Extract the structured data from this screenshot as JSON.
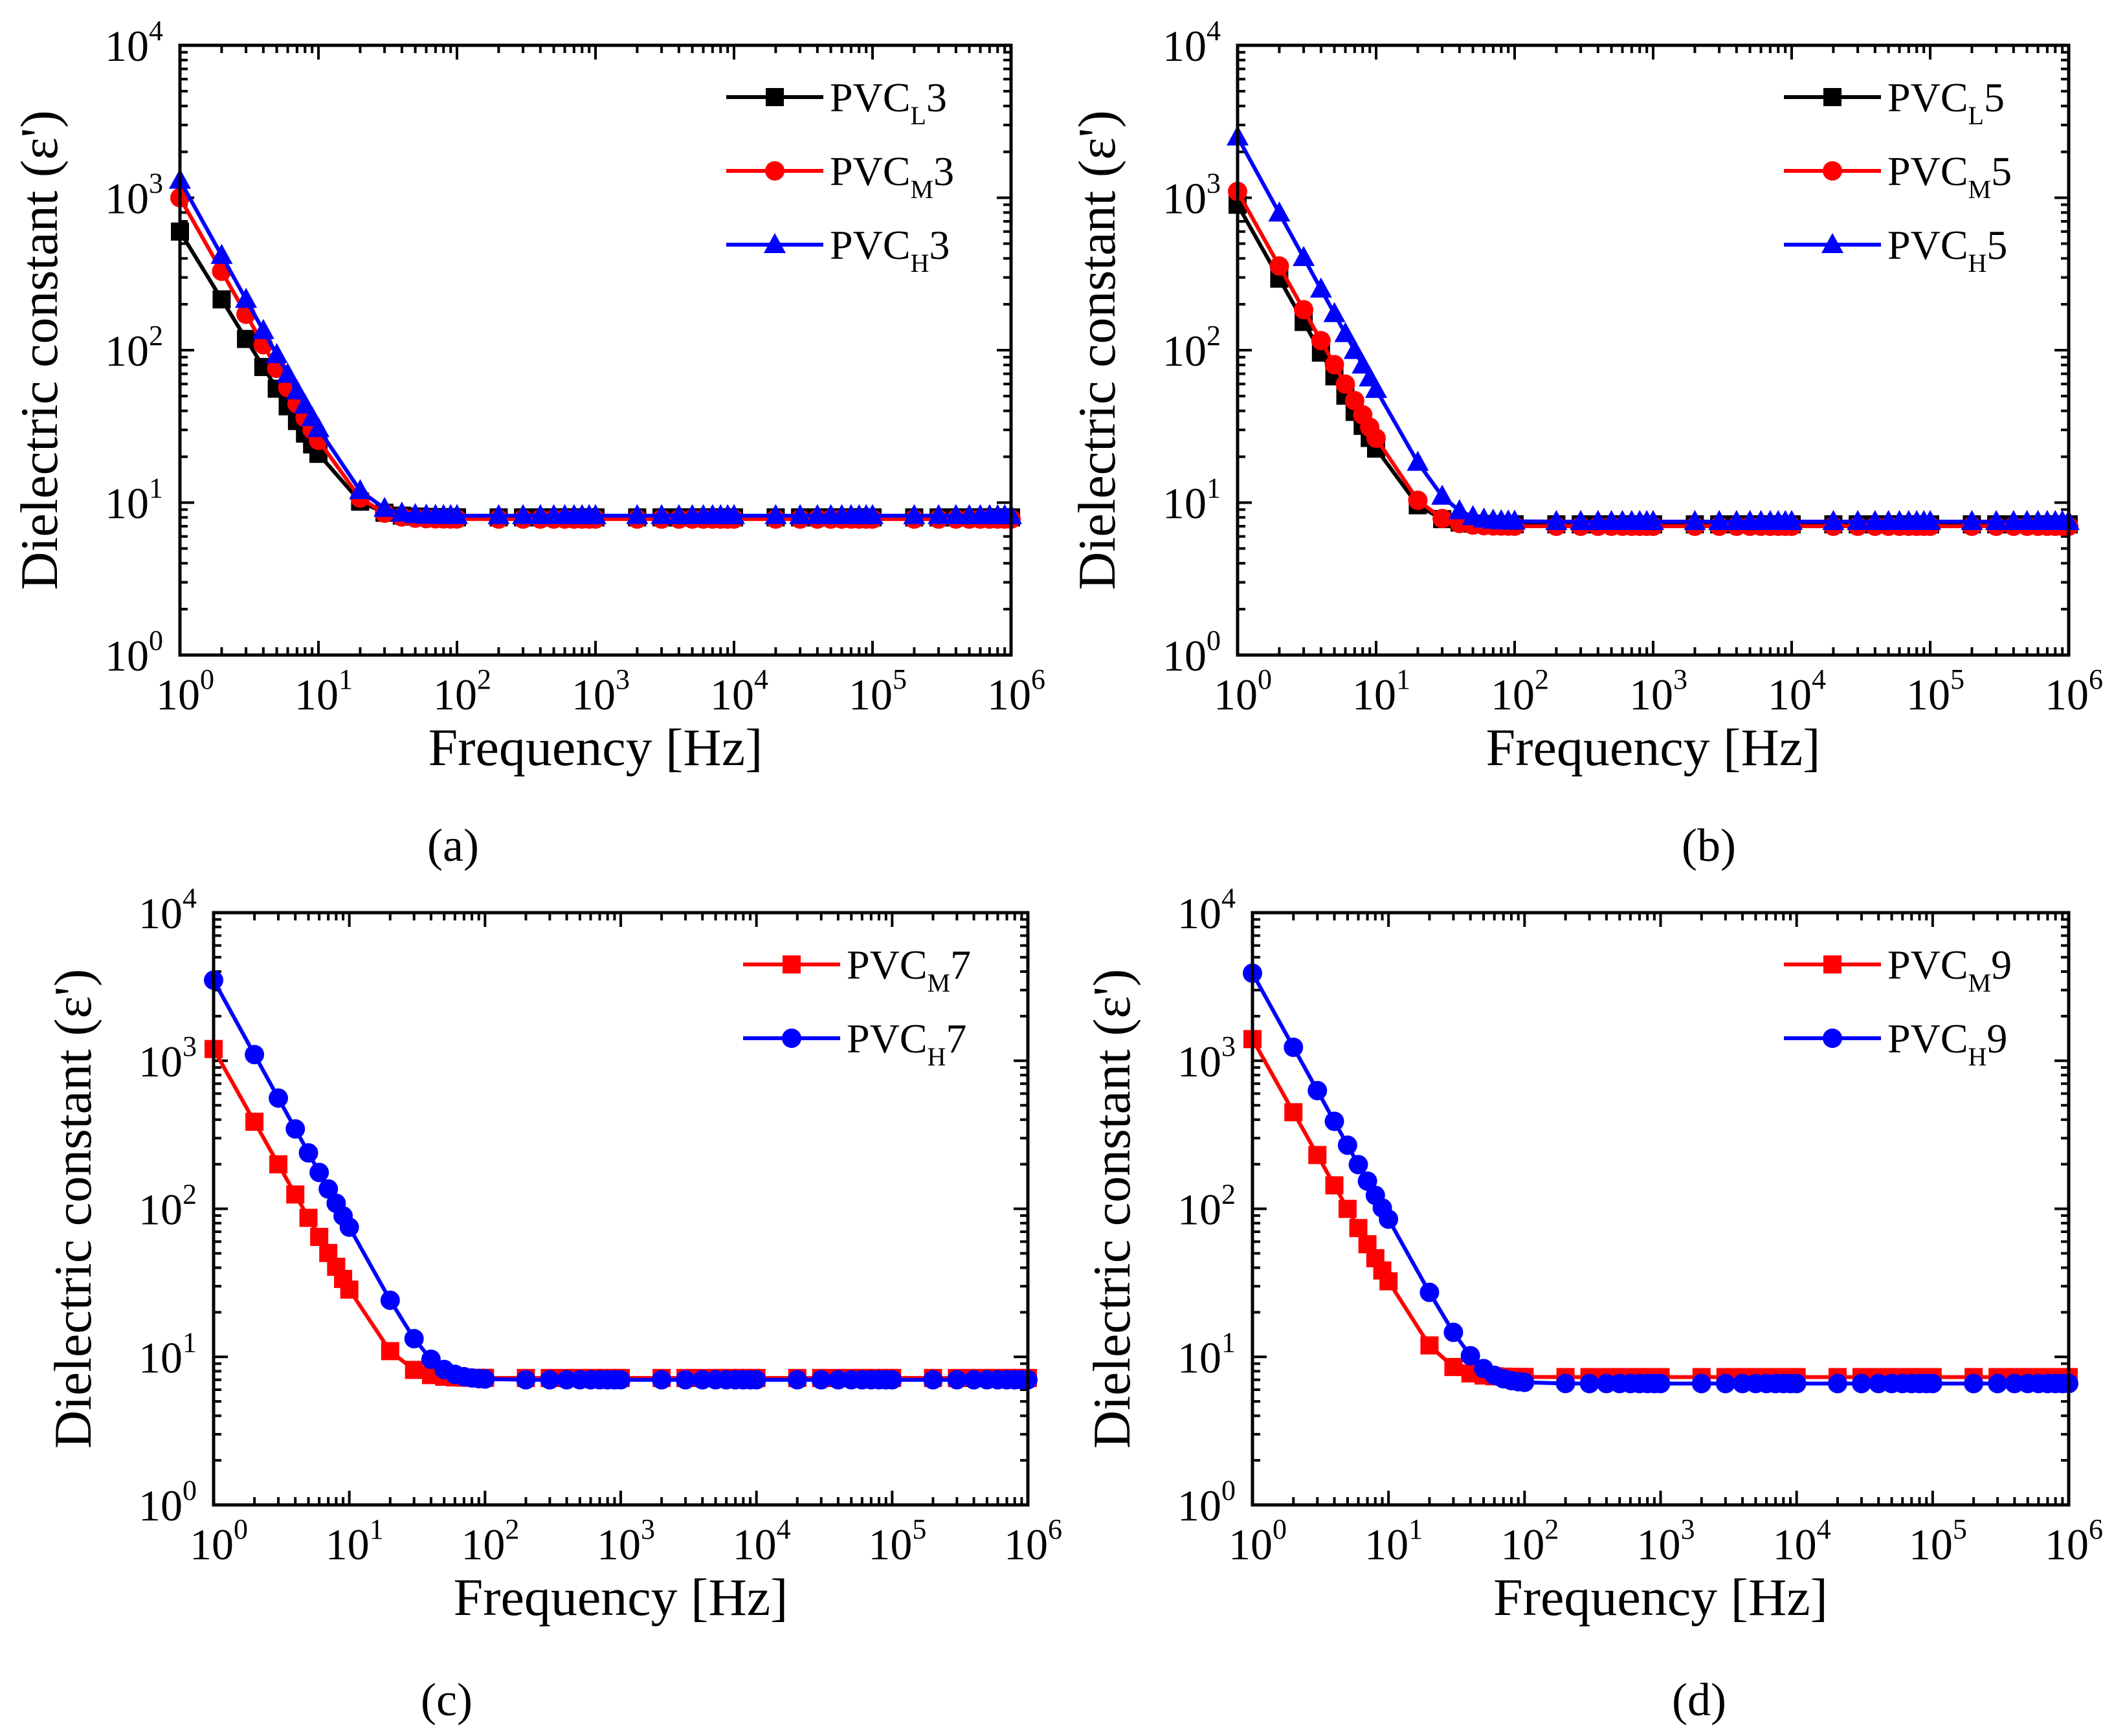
{
  "colors": {
    "black": "#000000",
    "red": "#ff0000",
    "blue": "#0000ff"
  },
  "chart_data": [
    {
      "type": "line",
      "panel_label": "(a)",
      "xlabel": "Frequency [Hz]",
      "ylabel": "Dielectric constant (ε')",
      "xscale": "log",
      "yscale": "log",
      "xlim": [
        1,
        1000000
      ],
      "ylim": [
        1,
        10000
      ],
      "x_tick_labels": [
        {
          "base": "10",
          "exp": "0"
        },
        {
          "base": "10",
          "exp": "1"
        },
        {
          "base": "10",
          "exp": "2"
        },
        {
          "base": "10",
          "exp": "3"
        },
        {
          "base": "10",
          "exp": "4"
        },
        {
          "base": "10",
          "exp": "5"
        },
        {
          "base": "10",
          "exp": "6"
        }
      ],
      "y_tick_labels": [
        {
          "base": "10",
          "exp": "0"
        },
        {
          "base": "10",
          "exp": "1"
        },
        {
          "base": "10",
          "exp": "2"
        },
        {
          "base": "10",
          "exp": "3"
        },
        {
          "base": "10",
          "exp": "4"
        }
      ],
      "legend_position": "top-right",
      "series": [
        {
          "name": "PVC",
          "subscript": "L",
          "suffix": "3",
          "color": "#000000",
          "marker": "square",
          "low": 600,
          "mid": 20,
          "plateau": 8.0
        },
        {
          "name": "PVC",
          "subscript": "M",
          "suffix": "3",
          "color": "#ff0000",
          "marker": "circle",
          "low": 1000,
          "mid": 25,
          "plateau": 7.8
        },
        {
          "name": "PVC",
          "subscript": "H",
          "suffix": "3",
          "color": "#0000ff",
          "marker": "triangle",
          "low": 1300,
          "mid": 30,
          "plateau": 8.2
        }
      ]
    },
    {
      "type": "line",
      "panel_label": "(b)",
      "xlabel": "Frequency [Hz]",
      "ylabel": "Dielectric constant (ε')",
      "xscale": "log",
      "yscale": "log",
      "xlim": [
        1,
        1000000
      ],
      "ylim": [
        1,
        10000
      ],
      "x_tick_labels": [
        {
          "base": "10",
          "exp": "0"
        },
        {
          "base": "10",
          "exp": "1"
        },
        {
          "base": "10",
          "exp": "2"
        },
        {
          "base": "10",
          "exp": "3"
        },
        {
          "base": "10",
          "exp": "4"
        },
        {
          "base": "10",
          "exp": "5"
        },
        {
          "base": "10",
          "exp": "6"
        }
      ],
      "y_tick_labels": [
        {
          "base": "10",
          "exp": "0"
        },
        {
          "base": "10",
          "exp": "1"
        },
        {
          "base": "10",
          "exp": "2"
        },
        {
          "base": "10",
          "exp": "3"
        },
        {
          "base": "10",
          "exp": "4"
        }
      ],
      "legend_position": "top-right",
      "series": [
        {
          "name": "PVC",
          "subscript": "L",
          "suffix": "5",
          "color": "#000000",
          "marker": "square",
          "low": 900,
          "mid": 22,
          "plateau": 7.2
        },
        {
          "name": "PVC",
          "subscript": "M",
          "suffix": "5",
          "color": "#ff0000",
          "marker": "circle",
          "low": 1100,
          "mid": 26,
          "plateau": 7.0
        },
        {
          "name": "PVC",
          "subscript": "H",
          "suffix": "5",
          "color": "#0000ff",
          "marker": "triangle",
          "low": 2500,
          "mid": 55,
          "plateau": 7.5
        }
      ]
    },
    {
      "type": "line",
      "panel_label": "(c)",
      "xlabel": "Frequency [Hz]",
      "ylabel": "Dielectric constant (ε')",
      "xscale": "log",
      "yscale": "log",
      "xlim": [
        1,
        1000000
      ],
      "ylim": [
        1,
        10000
      ],
      "x_tick_labels": [
        {
          "base": "10",
          "exp": "0"
        },
        {
          "base": "10",
          "exp": "1"
        },
        {
          "base": "10",
          "exp": "2"
        },
        {
          "base": "10",
          "exp": "3"
        },
        {
          "base": "10",
          "exp": "4"
        },
        {
          "base": "10",
          "exp": "5"
        },
        {
          "base": "10",
          "exp": "6"
        }
      ],
      "y_tick_labels": [
        {
          "base": "10",
          "exp": "0"
        },
        {
          "base": "10",
          "exp": "1"
        },
        {
          "base": "10",
          "exp": "2"
        },
        {
          "base": "10",
          "exp": "3"
        },
        {
          "base": "10",
          "exp": "4"
        }
      ],
      "legend_position": "top-right",
      "series": [
        {
          "name": "PVC",
          "subscript": "M",
          "suffix": "7",
          "color": "#ff0000",
          "marker": "square",
          "low": 1200,
          "mid": 28,
          "plateau": 7.2
        },
        {
          "name": "PVC",
          "subscript": "H",
          "suffix": "7",
          "color": "#0000ff",
          "marker": "circle",
          "low": 3500,
          "mid": 75,
          "plateau": 7.0
        }
      ]
    },
    {
      "type": "line",
      "panel_label": "(d)",
      "xlabel": "Frequency [Hz]",
      "ylabel": "Dielectric constant (ε')",
      "xscale": "log",
      "yscale": "log",
      "xlim": [
        1,
        1000000
      ],
      "ylim": [
        1,
        10000
      ],
      "x_tick_labels": [
        {
          "base": "10",
          "exp": "0"
        },
        {
          "base": "10",
          "exp": "1"
        },
        {
          "base": "10",
          "exp": "2"
        },
        {
          "base": "10",
          "exp": "3"
        },
        {
          "base": "10",
          "exp": "4"
        },
        {
          "base": "10",
          "exp": "5"
        },
        {
          "base": "10",
          "exp": "6"
        }
      ],
      "y_tick_labels": [
        {
          "base": "10",
          "exp": "0"
        },
        {
          "base": "10",
          "exp": "1"
        },
        {
          "base": "10",
          "exp": "2"
        },
        {
          "base": "10",
          "exp": "3"
        },
        {
          "base": "10",
          "exp": "4"
        }
      ],
      "legend_position": "top-right",
      "series": [
        {
          "name": "PVC",
          "subscript": "M",
          "suffix": "9",
          "color": "#ff0000",
          "marker": "square",
          "low": 1400,
          "mid": 32,
          "plateau": 7.3
        },
        {
          "name": "PVC",
          "subscript": "H",
          "suffix": "9",
          "color": "#0000ff",
          "marker": "circle",
          "low": 3900,
          "mid": 85,
          "plateau": 6.6
        }
      ]
    }
  ]
}
